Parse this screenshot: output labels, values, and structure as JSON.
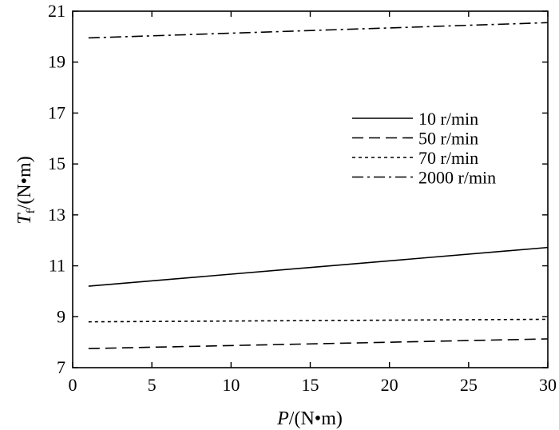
{
  "chart_data": {
    "type": "line",
    "title": "",
    "xlabel": {
      "var": "P",
      "unit": "/(N•m)"
    },
    "ylabel": {
      "var": "T",
      "sub": "f",
      "unit": "/(N•m)"
    },
    "xlim": [
      0,
      30
    ],
    "ylim": [
      7,
      21
    ],
    "xticks": [
      0,
      5,
      10,
      15,
      20,
      25,
      30
    ],
    "yticks": [
      7,
      9,
      11,
      13,
      15,
      17,
      19,
      21
    ],
    "grid": false,
    "legend_position": "right",
    "series": [
      {
        "name": "10 r/min",
        "dash": "solid",
        "x": [
          1,
          30
        ],
        "y": [
          10.2,
          11.72
        ]
      },
      {
        "name": "50 r/min",
        "dash": "dashed",
        "x": [
          1,
          30
        ],
        "y": [
          7.75,
          8.13
        ]
      },
      {
        "name": "70 r/min",
        "dash": "dotted",
        "x": [
          1,
          30
        ],
        "y": [
          8.8,
          8.9
        ]
      },
      {
        "name": "2000 r/min",
        "dash": "dashdot",
        "x": [
          1,
          30
        ],
        "y": [
          19.95,
          20.55
        ]
      }
    ]
  }
}
